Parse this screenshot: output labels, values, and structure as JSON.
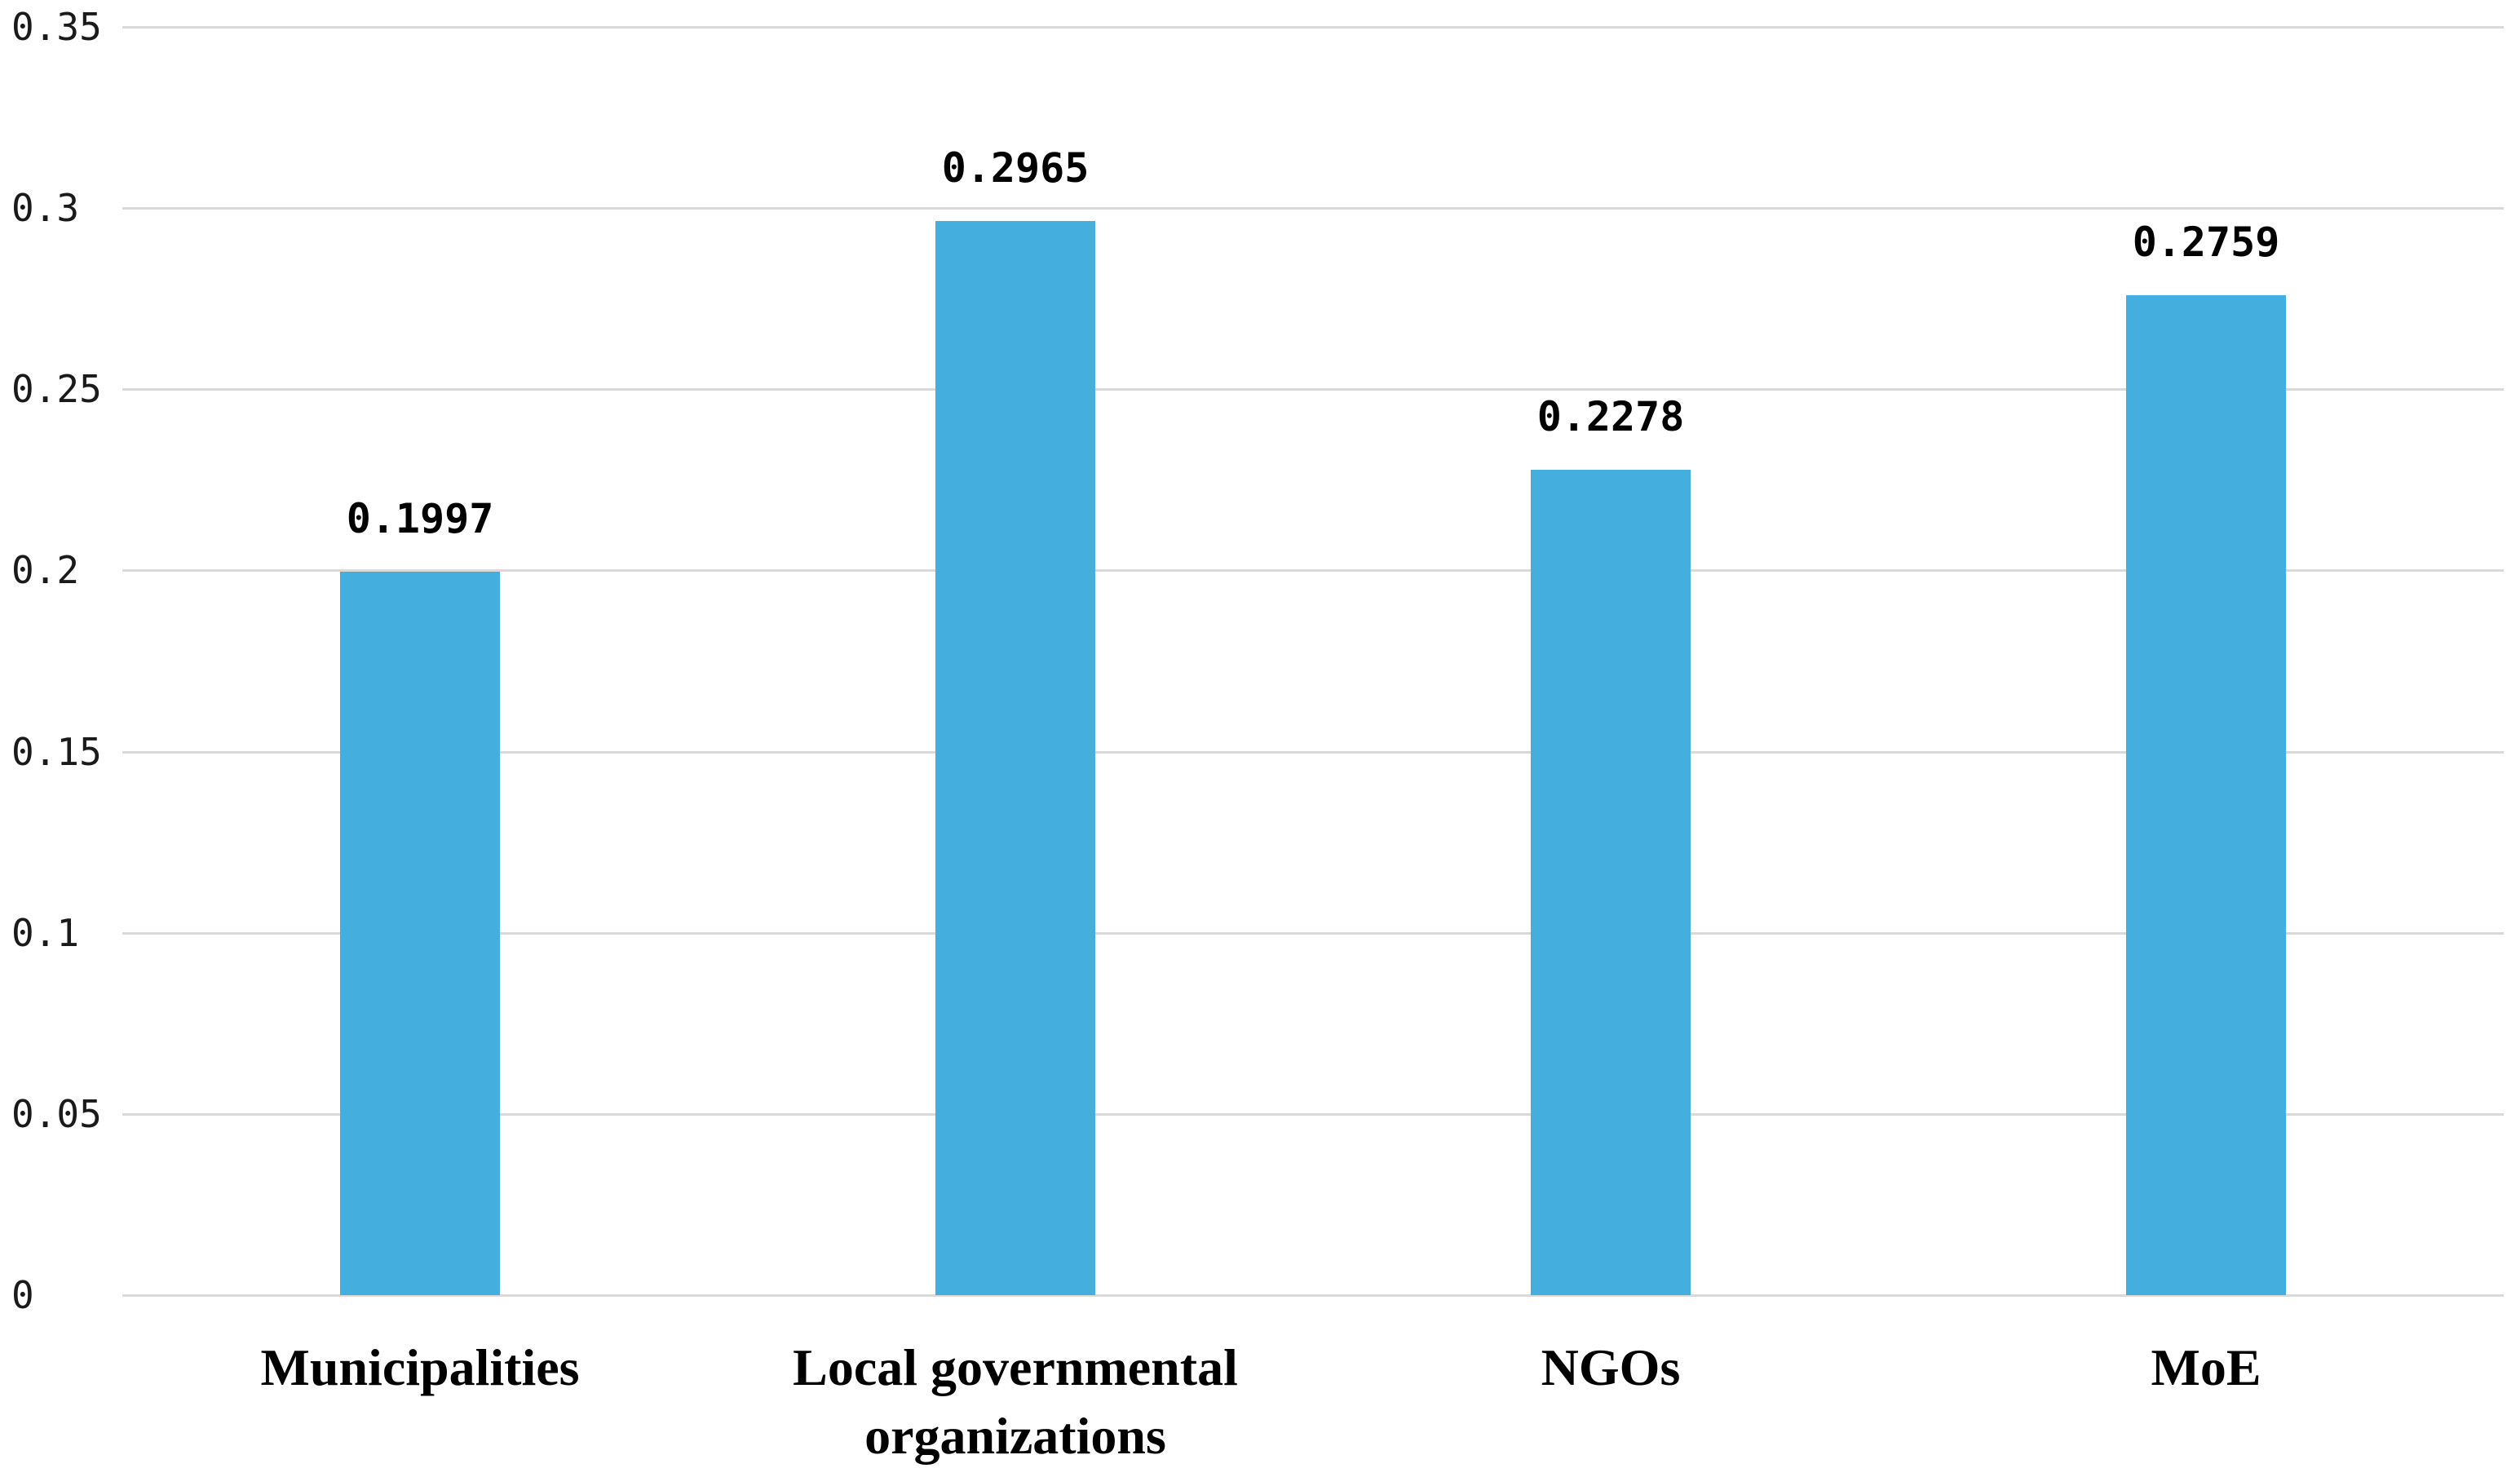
{
  "chart_data": {
    "type": "bar",
    "categories": [
      "Municipalities",
      "Local governmental organizations",
      "NGOs",
      "MoE"
    ],
    "values": [
      0.1997,
      0.2965,
      0.2278,
      0.2759
    ],
    "value_labels": [
      "0.1997",
      "0.2965",
      "0.2278",
      "0.2759"
    ],
    "series": [
      {
        "name": "",
        "values": [
          0.1997,
          0.2965,
          0.2278,
          0.2759
        ]
      }
    ],
    "title": "",
    "xlabel": "",
    "ylabel": "",
    "ylim": [
      0,
      0.35
    ],
    "yticks": [
      {
        "label": "0",
        "value": 0.0
      },
      {
        "label": "0.05",
        "value": 0.05
      },
      {
        "label": "0.1",
        "value": 0.1
      },
      {
        "label": "0.15",
        "value": 0.15
      },
      {
        "label": "0.2",
        "value": 0.2
      },
      {
        "label": "0.25",
        "value": 0.25
      },
      {
        "label": "0.3",
        "value": 0.3
      },
      {
        "label": "0.35",
        "value": 0.35
      },
      {
        "label": "0.35",
        "value": 0.35
      }
    ],
    "grid": "horizontal-only",
    "legend_position": "none",
    "bar_color": "#44afdf",
    "gridline_color": "#d9d9d9",
    "tick_text_color": "#1a1a1a",
    "label_text_color": "#000000",
    "background_color": "#ffffff"
  }
}
